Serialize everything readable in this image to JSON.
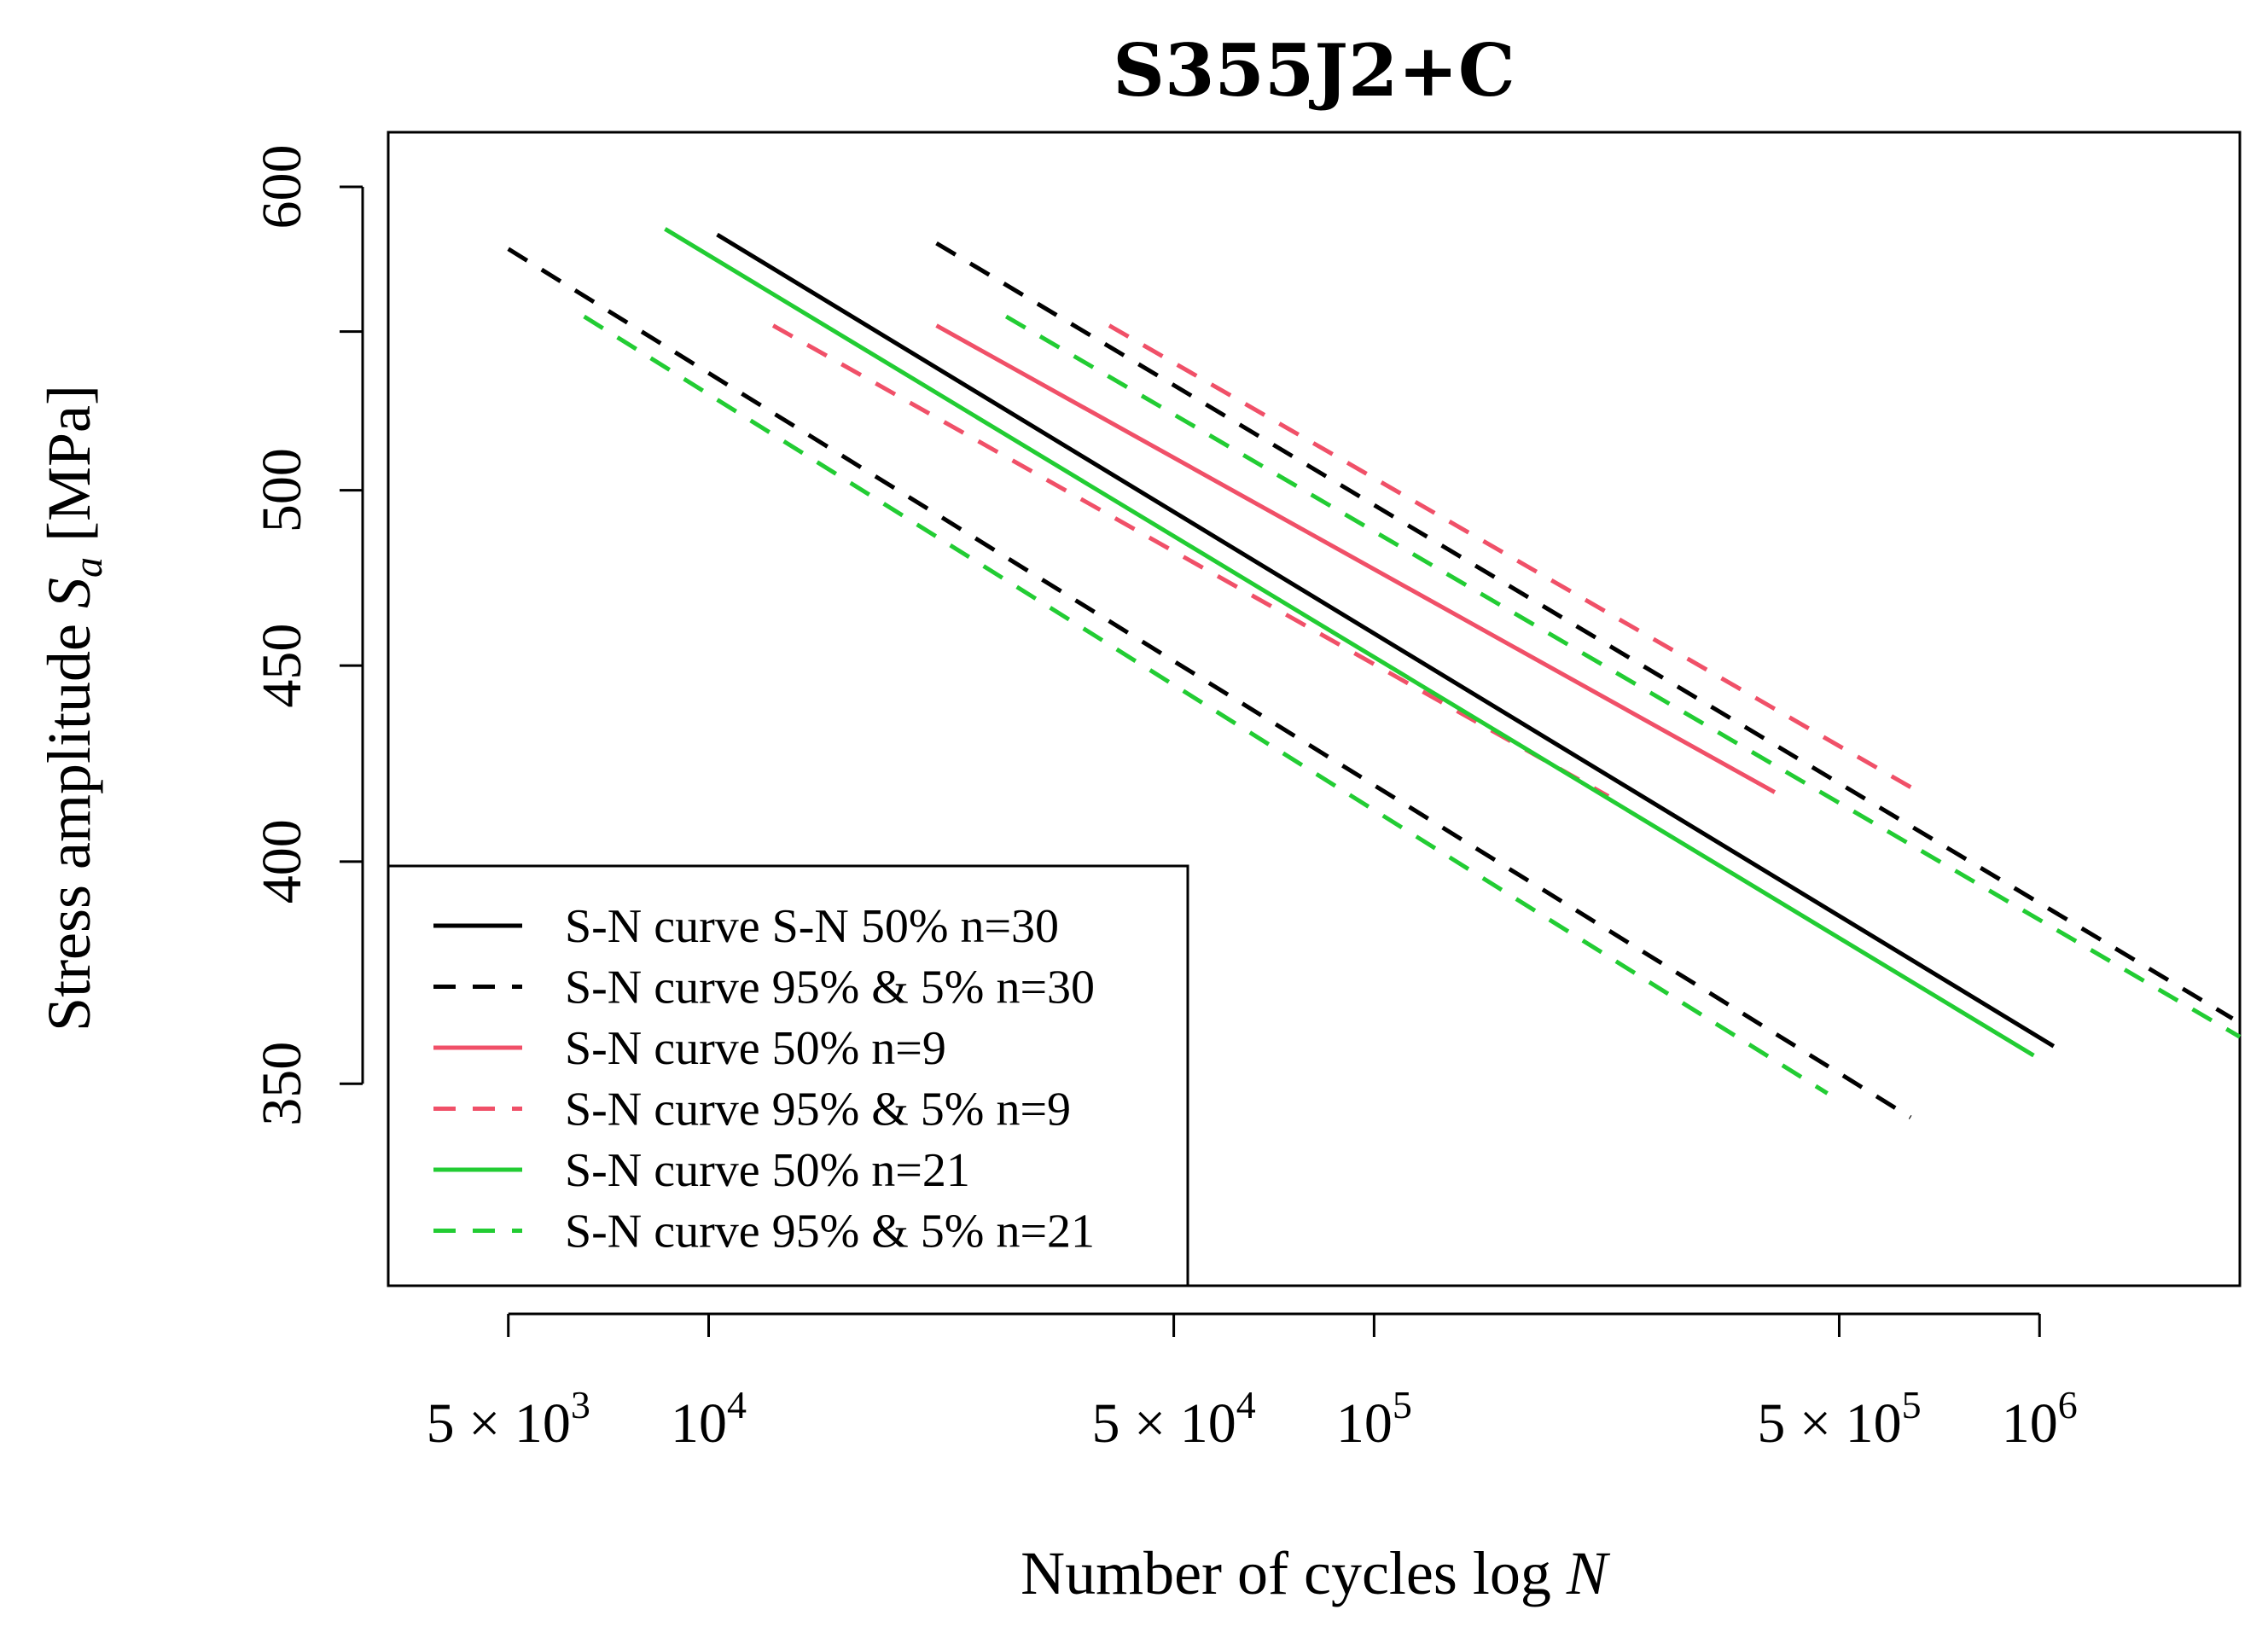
{
  "chart_data": {
    "type": "line",
    "title": "S355J2+C",
    "xlabel": {
      "text": "Number of cycles log ",
      "var": "N"
    },
    "ylabel": {
      "text": "Stress amplitude  ",
      "var": "S",
      "sub": "a",
      "unit": " [MPa]"
    },
    "x_scale": "log10",
    "y_scale": "log10",
    "xlim": [
      3300,
      2000000
    ],
    "ylim": [
      310,
      620
    ],
    "x_ticks": [
      {
        "value": 5000,
        "mant": "5",
        "times": "×",
        "base": "10",
        "exp": "3"
      },
      {
        "value": 10000,
        "mant": "",
        "times": "",
        "base": "10",
        "exp": "4"
      },
      {
        "value": 50000,
        "mant": "5",
        "times": "×",
        "base": "10",
        "exp": "4"
      },
      {
        "value": 100000,
        "mant": "",
        "times": "",
        "base": "10",
        "exp": "5"
      },
      {
        "value": 500000,
        "mant": "5",
        "times": "×",
        "base": "10",
        "exp": "5"
      },
      {
        "value": 1000000,
        "mant": "",
        "times": "",
        "base": "10",
        "exp": "6"
      }
    ],
    "y_ticks": [
      {
        "value": 350,
        "label": "350"
      },
      {
        "value": 400,
        "label": "400"
      },
      {
        "value": 450,
        "label": "450"
      },
      {
        "value": 500,
        "label": "500"
      },
      {
        "value": 550,
        "label": ""
      },
      {
        "value": 600,
        "label": "600"
      }
    ],
    "colors": {
      "black": "#000000",
      "red": "#f05068",
      "green": "#22cc33"
    },
    "series": [
      {
        "name": "S-N curve S-N 50% n=30",
        "group": "n30-50",
        "color": "black",
        "dashed": false,
        "x": [
          10300,
          1050000
        ],
        "y": [
          583,
          358
        ]
      },
      {
        "name": "S-N curve 95% & 5% n=30",
        "group": "n30-upper",
        "color": "black",
        "dashed": true,
        "x": [
          22000,
          1950000
        ],
        "y": [
          580,
          364
        ]
      },
      {
        "name": "S-N curve 95% & 5% n=30",
        "group": "n30-lower",
        "color": "black",
        "dashed": true,
        "x": [
          5000,
          640000
        ],
        "y": [
          578,
          343
        ]
      },
      {
        "name": "S-N curve 50% n=9",
        "group": "n9-50",
        "color": "red",
        "dashed": false,
        "x": [
          22000,
          400000
        ],
        "y": [
          552,
          417
        ]
      },
      {
        "name": "S-N curve 95% & 5% n=9",
        "group": "n9-upper",
        "color": "red",
        "dashed": true,
        "x": [
          40000,
          660000
        ],
        "y": [
          552,
          417
        ]
      },
      {
        "name": "S-N curve 95% & 5% n=9",
        "group": "n9-lower",
        "color": "red",
        "dashed": true,
        "x": [
          12500,
          225000
        ],
        "y": [
          552,
          416
        ]
      },
      {
        "name": "S-N curve 50% n=21",
        "group": "n21-50",
        "color": "green",
        "dashed": false,
        "x": [
          8600,
          980000
        ],
        "y": [
          585,
          356
        ]
      },
      {
        "name": "S-N curve 95% & 5% n=21",
        "group": "n21-upper",
        "color": "green",
        "dashed": true,
        "x": [
          28000,
          2000000
        ],
        "y": [
          555,
          360
        ]
      },
      {
        "name": "S-N curve 95% & 5% n=21",
        "group": "n21-lower",
        "color": "green",
        "dashed": true,
        "x": [
          6500,
          480000
        ],
        "y": [
          555,
          348
        ]
      }
    ],
    "legend": {
      "position": "bottom-left",
      "entries": [
        {
          "label": "S-N curve S-N 50% n=30",
          "color": "black",
          "dashed": false
        },
        {
          "label": "S-N curve 95% & 5% n=30",
          "color": "black",
          "dashed": true
        },
        {
          "label": "S-N curve 50% n=9",
          "color": "red",
          "dashed": false
        },
        {
          "label": "S-N curve 95% & 5% n=9",
          "color": "red",
          "dashed": true
        },
        {
          "label": "S-N curve 50% n=21",
          "color": "green",
          "dashed": false
        },
        {
          "label": "S-N curve 95% & 5% n=21",
          "color": "green",
          "dashed": true
        }
      ]
    }
  }
}
